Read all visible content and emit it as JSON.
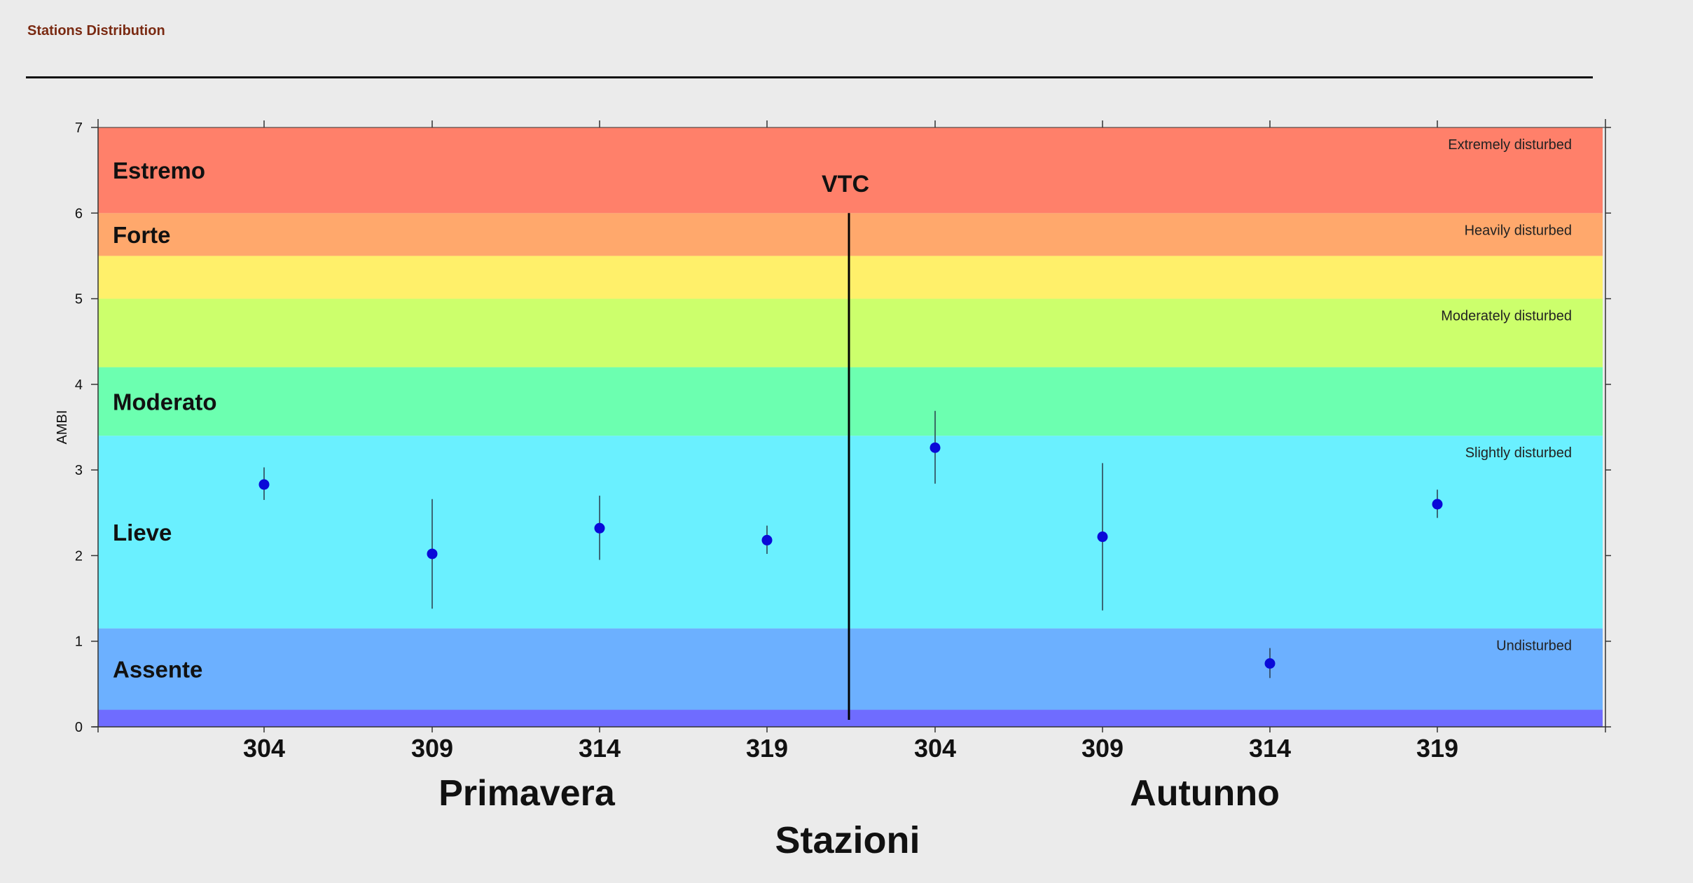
{
  "header": {
    "title": "Stations Distribution"
  },
  "chart_data": {
    "type": "scatter",
    "ylabel": "AMBI",
    "xlabel": "Stazioni",
    "ylim": [
      0,
      7
    ],
    "yticks": [
      0,
      1,
      2,
      3,
      4,
      5,
      6,
      7
    ],
    "groups": [
      {
        "label": "Primavera",
        "categories": [
          "304",
          "309",
          "314",
          "319"
        ]
      },
      {
        "label": "Autunno",
        "categories": [
          "304",
          "309",
          "314",
          "319"
        ]
      }
    ],
    "divider_label": "VTC",
    "series": [
      {
        "values": [
          2.83,
          2.02,
          2.32,
          2.18,
          3.26,
          2.22,
          0.74,
          2.6
        ],
        "error_low": [
          2.65,
          1.38,
          1.95,
          2.02,
          2.84,
          1.36,
          0.57,
          2.44
        ],
        "error_high": [
          3.03,
          2.66,
          2.7,
          2.35,
          3.69,
          3.08,
          0.92,
          2.77
        ],
        "color": "#0a0ad8"
      }
    ],
    "bands": [
      {
        "from": 0.0,
        "to": 0.2,
        "color": "#6f6cff",
        "label": "",
        "right_label": ""
      },
      {
        "from": 0.2,
        "to": 1.15,
        "color": "#6cb0ff",
        "label": "Assente",
        "right_label": "Undisturbed"
      },
      {
        "from": 1.15,
        "to": 3.4,
        "color": "#6af0ff",
        "label": "Lieve",
        "right_label": "Slightly disturbed"
      },
      {
        "from": 3.4,
        "to": 4.2,
        "color": "#6cffb0",
        "label": "Moderato",
        "right_label": ""
      },
      {
        "from": 4.2,
        "to": 5.0,
        "color": "#ccff6c",
        "label": "",
        "right_label": "Moderately disturbed"
      },
      {
        "from": 5.0,
        "to": 5.5,
        "color": "#fff06a",
        "label": "",
        "right_label": ""
      },
      {
        "from": 5.5,
        "to": 6.0,
        "color": "#ffa86c",
        "label": "Forte",
        "right_label": "Heavily disturbed"
      },
      {
        "from": 6.0,
        "to": 7.0,
        "color": "#ff806a",
        "label": "Estremo",
        "right_label": "Extremely disturbed"
      }
    ]
  }
}
